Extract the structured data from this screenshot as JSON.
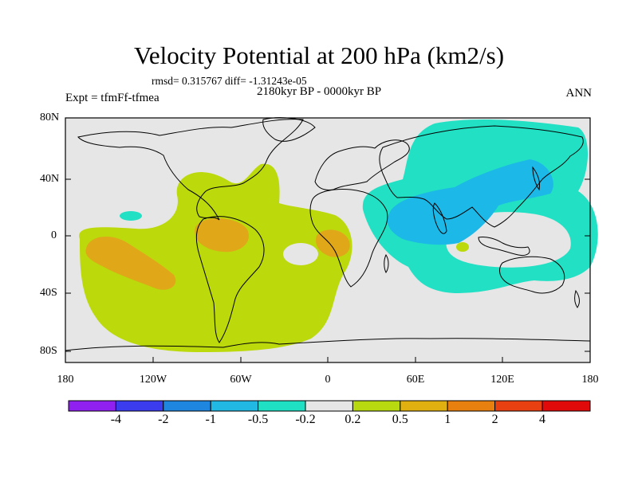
{
  "title": "Velocity Potential at 200 hPa (km2/s)",
  "stats": "rmsd= 0.315767 diff= -1.31243e-05",
  "period": "2180kyr BP - 0000kyr BP",
  "experiment": "Expt = tfmFf-tfmea",
  "season": "ANN",
  "lat_labels": [
    "80N",
    "40N",
    "0",
    "40S",
    "80S"
  ],
  "lon_labels": [
    "180",
    "120W",
    "60W",
    "0",
    "60E",
    "120E",
    "180"
  ],
  "colorbar": {
    "labels": [
      "-4",
      "-2",
      "-1",
      "-0.5",
      "-0.2",
      "0.2",
      "0.5",
      "1",
      "2",
      "4"
    ],
    "colors": [
      "#8f20f0",
      "#3c3cef",
      "#1f86e0",
      "#22b8e4",
      "#20e0c4",
      "#e6e6e6",
      "#b8d80f",
      "#e0b010",
      "#e88010",
      "#e84010",
      "#e00a0a"
    ]
  },
  "field_colors": {
    "background": "#e6e6e6",
    "pos_low": "#bcd90c",
    "pos_mid": "#e0a818",
    "neg_low": "#22e0c4",
    "neg_mid": "#1cb8e8"
  }
}
